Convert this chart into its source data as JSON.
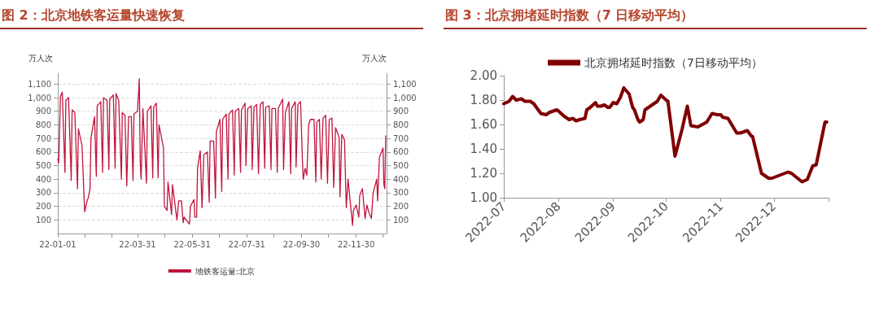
{
  "chart_data": [
    {
      "type": "line",
      "title": "图 2：北京地铁客运量快速恢复",
      "ylabel": "万人次",
      "y2label": "万人次",
      "x": [
        "2022-01-01",
        "2022-01-02",
        "2022-01-04",
        "2022-01-06",
        "2022-01-09",
        "2022-01-10",
        "2022-01-13",
        "2022-01-16",
        "2022-01-17",
        "2022-01-20",
        "2022-01-23",
        "2022-01-24",
        "2022-01-28",
        "2022-01-31",
        "2022-02-03",
        "2022-02-04",
        "2022-02-06",
        "2022-02-07",
        "2022-02-11",
        "2022-02-13",
        "2022-02-14",
        "2022-02-18",
        "2022-02-20",
        "2022-02-21",
        "2022-02-25",
        "2022-02-27",
        "2022-02-28",
        "2022-03-04",
        "2022-03-06",
        "2022-03-07",
        "2022-03-10",
        "2022-03-13",
        "2022-03-14",
        "2022-03-17",
        "2022-03-19",
        "2022-03-21",
        "2022-03-24",
        "2022-03-26",
        "2022-03-27",
        "2022-03-31",
        "2022-04-02",
        "2022-04-03",
        "2022-04-04",
        "2022-04-06",
        "2022-04-10",
        "2022-04-11",
        "2022-04-15",
        "2022-04-17",
        "2022-04-18",
        "2022-04-21",
        "2022-04-23",
        "2022-04-24",
        "2022-04-29",
        "2022-04-30",
        "2022-05-03",
        "2022-05-04",
        "2022-05-08",
        "2022-05-09",
        "2022-05-14",
        "2022-05-16",
        "2022-05-19",
        "2022-05-21",
        "2022-05-22",
        "2022-05-28",
        "2022-05-29",
        "2022-06-02",
        "2022-06-03",
        "2022-06-05",
        "2022-06-06",
        "2022-06-09",
        "2022-06-11",
        "2022-06-13",
        "2022-06-17",
        "2022-06-19",
        "2022-06-20",
        "2022-06-24",
        "2022-06-26",
        "2022-06-27",
        "2022-07-01",
        "2022-07-03",
        "2022-07-04",
        "2022-07-08",
        "2022-07-10",
        "2022-07-11",
        "2022-07-15",
        "2022-07-17",
        "2022-07-18",
        "2022-07-22",
        "2022-07-24",
        "2022-07-25",
        "2022-07-29",
        "2022-07-30",
        "2022-08-01",
        "2022-08-05",
        "2022-08-06",
        "2022-08-08",
        "2022-08-11",
        "2022-08-13",
        "2022-08-15",
        "2022-08-18",
        "2022-08-20",
        "2022-08-21",
        "2022-08-25",
        "2022-08-27",
        "2022-08-28",
        "2022-09-01",
        "2022-09-03",
        "2022-09-04",
        "2022-09-09",
        "2022-09-10",
        "2022-09-12",
        "2022-09-16",
        "2022-09-18",
        "2022-09-19",
        "2022-09-23",
        "2022-09-24",
        "2022-09-26",
        "2022-09-29",
        "2022-10-01",
        "2022-10-02",
        "2022-10-04",
        "2022-10-06",
        "2022-10-08",
        "2022-10-10",
        "2022-10-14",
        "2022-10-16",
        "2022-10-17",
        "2022-10-20",
        "2022-10-22",
        "2022-10-24",
        "2022-10-27",
        "2022-10-29",
        "2022-10-31",
        "2022-11-03",
        "2022-11-05",
        "2022-11-07",
        "2022-11-11",
        "2022-11-12",
        "2022-11-14",
        "2022-11-17",
        "2022-11-19",
        "2022-11-21",
        "2022-11-26",
        "2022-11-27",
        "2022-11-30",
        "2022-12-03",
        "2022-12-04",
        "2022-12-07",
        "2022-12-10",
        "2022-12-12",
        "2022-12-14",
        "2022-12-17",
        "2022-12-19",
        "2022-12-23",
        "2022-12-24",
        "2022-12-26",
        "2022-12-30",
        "2022-12-31",
        "2023-01-01",
        "2023-01-02"
      ],
      "series": [
        {
          "name": "地铁客运量:北京",
          "color": "#c0143c",
          "values": [
            550,
            520,
            1010,
            1040,
            450,
            980,
            1000,
            390,
            910,
            890,
            330,
            770,
            650,
            160,
            250,
            260,
            330,
            700,
            860,
            420,
            940,
            970,
            450,
            1000,
            980,
            470,
            990,
            1020,
            480,
            1030,
            980,
            400,
            890,
            870,
            350,
            860,
            860,
            390,
            880,
            900,
            1140,
            530,
            400,
            920,
            370,
            900,
            940,
            410,
            930,
            960,
            410,
            800,
            630,
            200,
            170,
            380,
            140,
            360,
            100,
            240,
            240,
            80,
            120,
            70,
            200,
            250,
            120,
            120,
            480,
            610,
            190,
            580,
            600,
            230,
            680,
            680,
            260,
            750,
            840,
            310,
            840,
            880,
            400,
            880,
            910,
            430,
            900,
            920,
            450,
            910,
            960,
            500,
            920,
            940,
            470,
            930,
            950,
            440,
            950,
            970,
            480,
            930,
            940,
            470,
            920,
            920,
            450,
            920,
            990,
            470,
            890,
            970,
            440,
            920,
            970,
            490,
            950,
            970,
            550,
            400,
            480,
            430,
            800,
            840,
            840,
            380,
            820,
            840,
            400,
            850,
            870,
            370,
            840,
            850,
            340,
            780,
            710,
            270,
            730,
            690,
            190,
            400,
            60,
            170,
            210,
            120,
            280,
            330,
            110,
            210,
            160,
            110,
            300,
            400,
            240,
            560,
            630,
            360,
            330,
            720
          ]
        }
      ],
      "xlim": [
        "2022-01-01",
        "2023-01-03"
      ],
      "xticks": [
        {
          "value": "2022-01-01",
          "label": "22-01-01"
        },
        {
          "value": "2022-01-31",
          "label": null
        },
        {
          "value": "2022-03-02",
          "label": null
        },
        {
          "value": "2022-03-31",
          "label": "22-03-31"
        },
        {
          "value": "2022-04-30",
          "label": null
        },
        {
          "value": "2022-05-31",
          "label": "22-05-31"
        },
        {
          "value": "2022-06-30",
          "label": null
        },
        {
          "value": "2022-07-31",
          "label": "22-07-31"
        },
        {
          "value": "2022-08-30",
          "label": null
        },
        {
          "value": "2022-09-30",
          "label": "22-09-30"
        },
        {
          "value": "2022-10-30",
          "label": null
        },
        {
          "value": "2022-11-30",
          "label": "22-11-30"
        },
        {
          "value": "2022-12-30",
          "label": null
        }
      ],
      "ylim": [
        0,
        1180
      ],
      "yticks": [
        100,
        200,
        300,
        400,
        500,
        600,
        700,
        800,
        900,
        {
          "value": 1000,
          "label": "1,000"
        },
        {
          "value": 1100,
          "label": "1,100"
        }
      ],
      "y2lim": [
        0,
        1180
      ],
      "y2ticks": [
        100,
        200,
        300,
        400,
        500,
        600,
        700,
        800,
        900,
        {
          "value": 1000,
          "label": "1,000"
        },
        {
          "value": 1100,
          "label": "1,100"
        }
      ],
      "grid": "y",
      "legend": "bottom",
      "marker": "none",
      "line_style": "solid"
    },
    {
      "type": "line",
      "title": "图 3：北京拥堵延时指数（7 日移动平均）",
      "x": [
        "2022-07-01",
        "2022-07-04",
        "2022-07-06",
        "2022-07-08",
        "2022-07-11",
        "2022-07-13",
        "2022-07-16",
        "2022-07-18",
        "2022-07-20",
        "2022-07-22",
        "2022-07-25",
        "2022-07-27",
        "2022-07-31",
        "2022-08-01",
        "2022-08-04",
        "2022-08-07",
        "2022-08-09",
        "2022-08-11",
        "2022-08-13",
        "2022-08-16",
        "2022-08-17",
        "2022-08-19",
        "2022-08-22",
        "2022-08-23",
        "2022-08-25",
        "2022-08-27",
        "2022-08-29",
        "2022-08-30",
        "2022-09-01",
        "2022-09-03",
        "2022-09-05",
        "2022-09-07",
        "2022-09-10",
        "2022-09-12",
        "2022-09-13",
        "2022-09-15",
        "2022-09-16",
        "2022-09-18",
        "2022-09-19",
        "2022-09-22",
        "2022-09-26",
        "2022-09-28",
        "2022-10-01",
        "2022-10-02",
        "2022-10-06",
        "2022-10-10",
        "2022-10-13",
        "2022-10-15",
        "2022-10-19",
        "2022-10-24",
        "2022-10-27",
        "2022-10-30",
        "2022-11-01",
        "2022-11-02",
        "2022-11-05",
        "2022-11-10",
        "2022-11-12",
        "2022-11-16",
        "2022-11-18",
        "2022-11-19",
        "2022-11-24",
        "2022-11-28",
        "2022-11-30",
        "2022-12-09",
        "2022-12-11",
        "2022-12-17",
        "2022-12-20",
        "2022-12-23",
        "2022-12-25",
        "2022-12-30",
        "2022-12-31"
      ],
      "series": [
        {
          "name": "北京拥堵延时指数（7日移动平均）",
          "color": "#800000",
          "values": [
            1.77,
            1.79,
            1.83,
            1.8,
            1.81,
            1.79,
            1.79,
            1.77,
            1.73,
            1.69,
            1.68,
            1.7,
            1.72,
            1.71,
            1.67,
            1.64,
            1.65,
            1.63,
            1.64,
            1.65,
            1.72,
            1.74,
            1.78,
            1.75,
            1.75,
            1.76,
            1.74,
            1.74,
            1.78,
            1.77,
            1.82,
            1.9,
            1.85,
            1.74,
            1.72,
            1.64,
            1.62,
            1.64,
            1.72,
            1.75,
            1.79,
            1.84,
            1.8,
            1.79,
            1.34,
            1.56,
            1.75,
            1.59,
            1.58,
            1.62,
            1.69,
            1.68,
            1.68,
            1.66,
            1.65,
            1.53,
            1.53,
            1.55,
            1.51,
            1.5,
            1.2,
            1.16,
            1.16,
            1.21,
            1.2,
            1.13,
            1.15,
            1.26,
            1.27,
            1.62,
            1.62
          ]
        }
      ],
      "xlim": [
        "2022-07-01",
        "2023-01-01"
      ],
      "xticks": [
        "2022-07",
        "2022-08",
        "2022-09",
        "2022-10",
        "2022-11",
        "2022-12",
        {
          "value": "2023-01",
          "label": null
        }
      ],
      "ylim": [
        1,
        2
      ],
      "yticks": [
        {
          "value": 1,
          "label": "1.00"
        },
        {
          "value": 1.2,
          "label": "1.20"
        },
        {
          "value": 1.4,
          "label": "1.40"
        },
        {
          "value": 1.6,
          "label": "1.60"
        },
        {
          "value": 1.8,
          "label": "1.80"
        },
        {
          "value": 2,
          "label": "2.00"
        }
      ],
      "grid": false,
      "legend": "top",
      "marker": "none",
      "line_style": "solid"
    }
  ]
}
